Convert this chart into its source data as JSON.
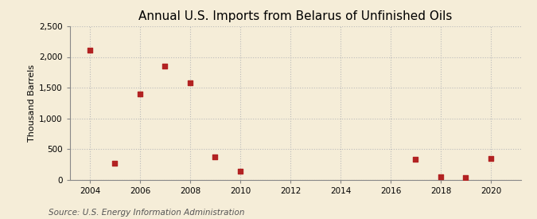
{
  "title": "Annual U.S. Imports from Belarus of Unfinished Oils",
  "ylabel": "Thousand Barrels",
  "source": "Source: U.S. Energy Information Administration",
  "background_color": "#f5edd8",
  "years": [
    2004,
    2005,
    2006,
    2007,
    2008,
    2009,
    2010,
    2017,
    2018,
    2019,
    2020
  ],
  "values": [
    2110,
    270,
    1400,
    1850,
    1580,
    370,
    130,
    330,
    50,
    30,
    350
  ],
  "marker_color": "#b22222",
  "marker_size": 5,
  "xlim": [
    2003.2,
    2021.2
  ],
  "ylim": [
    0,
    2500
  ],
  "yticks": [
    0,
    500,
    1000,
    1500,
    2000,
    2500
  ],
  "ytick_labels": [
    "0",
    "500",
    "1,000",
    "1,500",
    "2,000",
    "2,500"
  ],
  "xticks": [
    2004,
    2006,
    2008,
    2010,
    2012,
    2014,
    2016,
    2018,
    2020
  ],
  "grid_color": "#bbbbbb",
  "grid_style": ":",
  "grid_alpha": 1.0,
  "title_fontsize": 11,
  "label_fontsize": 8,
  "tick_fontsize": 7.5,
  "source_fontsize": 7.5
}
